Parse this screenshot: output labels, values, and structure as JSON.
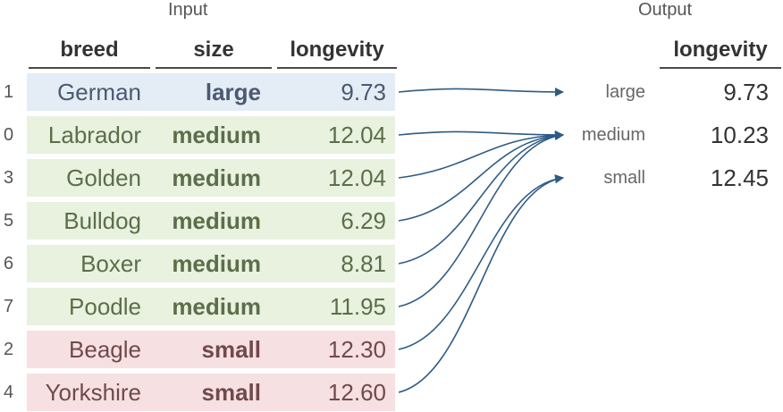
{
  "input_label": "Input",
  "output_label": "Output",
  "input_headers": [
    "breed",
    "size",
    "longevity"
  ],
  "output_header": "longevity",
  "colors": {
    "large": "#e4ecf5",
    "medium": "#e8f2df",
    "small": "#f7e0e1",
    "large_text": "#4a5a70",
    "medium_text": "#5c6e4a",
    "small_text": "#704a4c",
    "arrow": "#2e5b84"
  },
  "rows": [
    {
      "index": "1",
      "breed": "German",
      "size": "large",
      "longevity": "9.73"
    },
    {
      "index": "0",
      "breed": "Labrador",
      "size": "medium",
      "longevity": "12.04"
    },
    {
      "index": "3",
      "breed": "Golden",
      "size": "medium",
      "longevity": "12.04"
    },
    {
      "index": "5",
      "breed": "Bulldog",
      "size": "medium",
      "longevity": "6.29"
    },
    {
      "index": "6",
      "breed": "Boxer",
      "size": "medium",
      "longevity": "8.81"
    },
    {
      "index": "7",
      "breed": "Poodle",
      "size": "medium",
      "longevity": "11.95"
    },
    {
      "index": "2",
      "breed": "Beagle",
      "size": "small",
      "longevity": "12.30"
    },
    {
      "index": "4",
      "breed": "Yorkshire",
      "size": "small",
      "longevity": "12.60"
    }
  ],
  "output_rows": [
    {
      "key": "large",
      "value": "9.73"
    },
    {
      "key": "medium",
      "value": "10.23"
    },
    {
      "key": "small",
      "value": "12.45"
    }
  ]
}
